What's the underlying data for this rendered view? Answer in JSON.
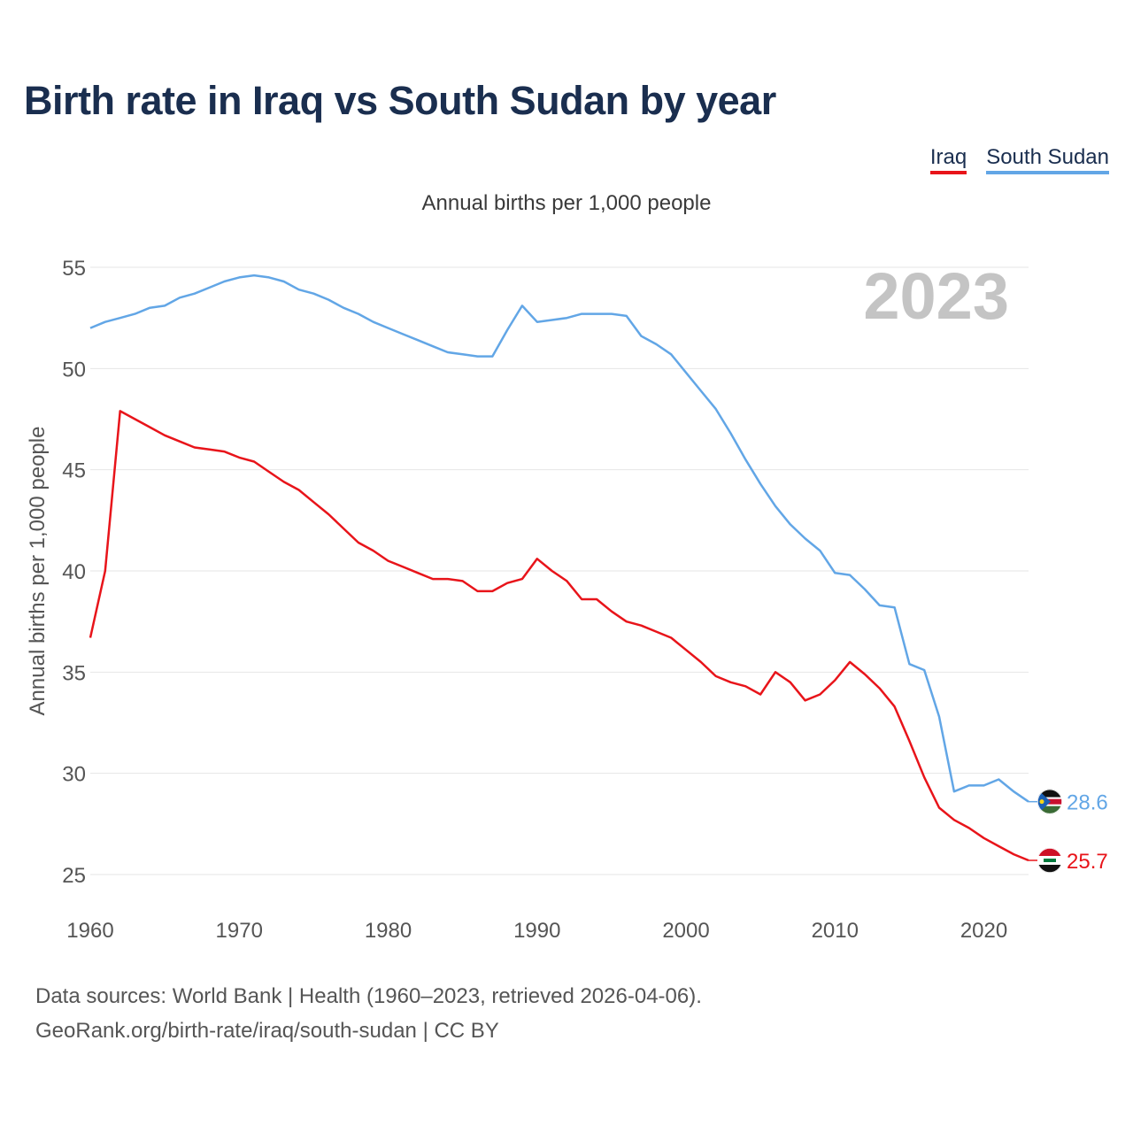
{
  "title": "Birth rate in Iraq vs South Sudan by year",
  "legend": {
    "iraq": "Iraq",
    "south_sudan": "South Sudan"
  },
  "subtitle": "Annual births per 1,000 people",
  "year_label": "2023",
  "end_labels": {
    "iraq": "25.7",
    "south_sudan": "28.6"
  },
  "footer": {
    "line1": "Data sources: World Bank | Health (1960–2023, retrieved 2026-04-06).",
    "line2": "GeoRank.org/birth-rate/iraq/south-sudan | CC BY"
  },
  "colors": {
    "iraq": "#e8141a",
    "south_sudan": "#62a6e6",
    "title": "#1a2e4f",
    "year": "#c4c4c4"
  },
  "icons": {
    "iraq_flag": "iraq-flag-icon",
    "south_sudan_flag": "south-sudan-flag-icon"
  },
  "chart_data": {
    "type": "line",
    "title": "Birth rate in Iraq vs South Sudan by year",
    "xlabel": "",
    "ylabel": "Annual births per 1,000 people",
    "xlim": [
      1960,
      2023
    ],
    "ylim": [
      25,
      55
    ],
    "xticks": [
      1960,
      1970,
      1980,
      1990,
      2000,
      2010,
      2020
    ],
    "yticks": [
      25,
      30,
      35,
      40,
      45,
      50,
      55
    ],
    "grid": true,
    "legend": "top-right",
    "x": [
      1960,
      1961,
      1962,
      1963,
      1964,
      1965,
      1966,
      1967,
      1968,
      1969,
      1970,
      1971,
      1972,
      1973,
      1974,
      1975,
      1976,
      1977,
      1978,
      1979,
      1980,
      1981,
      1982,
      1983,
      1984,
      1985,
      1986,
      1987,
      1988,
      1989,
      1990,
      1991,
      1992,
      1993,
      1994,
      1995,
      1996,
      1997,
      1998,
      1999,
      2000,
      2001,
      2002,
      2003,
      2004,
      2005,
      2006,
      2007,
      2008,
      2009,
      2010,
      2011,
      2012,
      2013,
      2014,
      2015,
      2016,
      2017,
      2018,
      2019,
      2020,
      2021,
      2022,
      2023
    ],
    "series": [
      {
        "name": "Iraq",
        "values": [
          36.7,
          40.0,
          47.9,
          47.5,
          47.1,
          46.7,
          46.4,
          46.1,
          46.0,
          45.9,
          45.6,
          45.4,
          44.9,
          44.4,
          44.0,
          43.4,
          42.8,
          42.1,
          41.4,
          41.0,
          40.5,
          40.2,
          39.9,
          39.6,
          39.6,
          39.5,
          39.0,
          39.0,
          39.4,
          39.6,
          40.6,
          40.0,
          39.5,
          38.6,
          38.6,
          38.0,
          37.5,
          37.3,
          37.0,
          36.7,
          36.1,
          35.5,
          34.8,
          34.5,
          34.3,
          33.9,
          35.0,
          34.5,
          33.6,
          33.9,
          34.6,
          35.5,
          34.9,
          34.2,
          33.3,
          31.6,
          29.8,
          28.3,
          27.7,
          27.3,
          26.8,
          26.4,
          26.0,
          25.7
        ]
      },
      {
        "name": "South Sudan",
        "values": [
          52.0,
          52.3,
          52.5,
          52.7,
          53.0,
          53.1,
          53.5,
          53.7,
          54.0,
          54.3,
          54.5,
          54.6,
          54.5,
          54.3,
          53.9,
          53.7,
          53.4,
          53.0,
          52.7,
          52.3,
          52.0,
          51.7,
          51.4,
          51.1,
          50.8,
          50.7,
          50.6,
          50.6,
          51.9,
          53.1,
          52.3,
          52.4,
          52.5,
          52.7,
          52.7,
          52.7,
          52.6,
          51.6,
          51.2,
          50.7,
          49.8,
          48.9,
          48.0,
          46.8,
          45.5,
          44.3,
          43.2,
          42.3,
          41.6,
          41.0,
          39.9,
          39.8,
          39.1,
          38.3,
          38.2,
          35.4,
          35.1,
          32.8,
          29.1,
          29.4,
          29.4,
          29.7,
          29.1,
          28.6
        ]
      }
    ]
  }
}
